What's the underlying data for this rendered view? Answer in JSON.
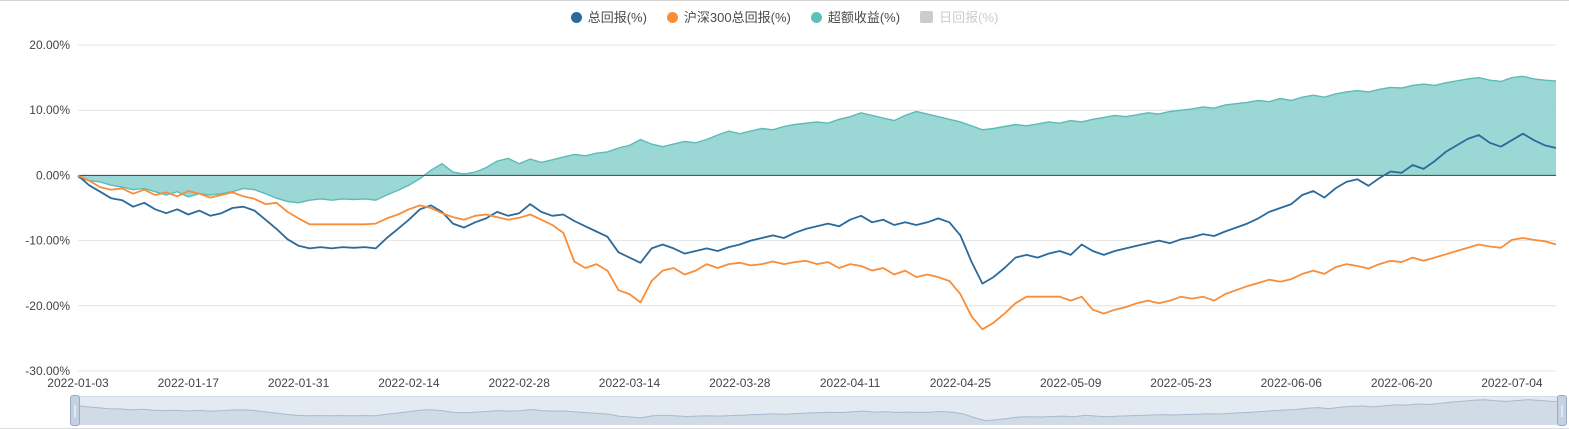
{
  "legend": {
    "items": [
      {
        "label": "总回报(%)",
        "color": "#2b6a9b",
        "marker": "circle",
        "active": true
      },
      {
        "label": "沪深300总回报(%)",
        "color": "#f98d38",
        "marker": "circle",
        "active": true
      },
      {
        "label": "超额收益(%)",
        "color": "#5fbfba",
        "marker": "circle",
        "active": true
      },
      {
        "label": "日回报(%)",
        "color": "#cccccc",
        "marker": "square",
        "active": false
      }
    ]
  },
  "chart_data": {
    "type": "line",
    "title": "",
    "xlabel": "",
    "ylabel": "",
    "grid": true,
    "legend_position": "top",
    "zero_line": true,
    "ylim": [
      -30,
      20
    ],
    "yticks": [
      "20.00%",
      "10.00%",
      "0.00%",
      "-10.00%",
      "-20.00%",
      "-30.00%"
    ],
    "xtick_every": 10,
    "xticks_shown": [
      "2022-01-03",
      "2022-01-17",
      "2022-01-31",
      "2022-02-14",
      "2022-02-28",
      "2022-03-14",
      "2022-03-28",
      "2022-04-11",
      "2022-04-25",
      "2022-05-09",
      "2022-05-23",
      "2022-06-06",
      "2022-06-20",
      "2022-07-04"
    ],
    "x": [
      "2022-01-03",
      "2022-01-04",
      "2022-01-05",
      "2022-01-06",
      "2022-01-07",
      "2022-01-10",
      "2022-01-11",
      "2022-01-12",
      "2022-01-13",
      "2022-01-14",
      "2022-01-17",
      "2022-01-18",
      "2022-01-19",
      "2022-01-20",
      "2022-01-21",
      "2022-01-24",
      "2022-01-25",
      "2022-01-26",
      "2022-01-27",
      "2022-01-28",
      "2022-01-31",
      "2022-02-01",
      "2022-02-02",
      "2022-02-03",
      "2022-02-04",
      "2022-02-07",
      "2022-02-08",
      "2022-02-09",
      "2022-02-10",
      "2022-02-11",
      "2022-02-14",
      "2022-02-15",
      "2022-02-16",
      "2022-02-17",
      "2022-02-18",
      "2022-02-21",
      "2022-02-22",
      "2022-02-23",
      "2022-02-24",
      "2022-02-25",
      "2022-02-28",
      "2022-03-01",
      "2022-03-02",
      "2022-03-03",
      "2022-03-04",
      "2022-03-07",
      "2022-03-08",
      "2022-03-09",
      "2022-03-10",
      "2022-03-11",
      "2022-03-14",
      "2022-03-15",
      "2022-03-16",
      "2022-03-17",
      "2022-03-18",
      "2022-03-21",
      "2022-03-22",
      "2022-03-23",
      "2022-03-24",
      "2022-03-25",
      "2022-03-28",
      "2022-03-29",
      "2022-03-30",
      "2022-03-31",
      "2022-04-01",
      "2022-04-04",
      "2022-04-05",
      "2022-04-06",
      "2022-04-07",
      "2022-04-08",
      "2022-04-11",
      "2022-04-12",
      "2022-04-13",
      "2022-04-14",
      "2022-04-15",
      "2022-04-18",
      "2022-04-19",
      "2022-04-20",
      "2022-04-21",
      "2022-04-22",
      "2022-04-25",
      "2022-04-26",
      "2022-04-27",
      "2022-04-28",
      "2022-04-29",
      "2022-05-02",
      "2022-05-03",
      "2022-05-04",
      "2022-05-05",
      "2022-05-06",
      "2022-05-09",
      "2022-05-10",
      "2022-05-11",
      "2022-05-12",
      "2022-05-13",
      "2022-05-16",
      "2022-05-17",
      "2022-05-18",
      "2022-05-19",
      "2022-05-20",
      "2022-05-23",
      "2022-05-24",
      "2022-05-25",
      "2022-05-26",
      "2022-05-27",
      "2022-05-30",
      "2022-05-31",
      "2022-06-01",
      "2022-06-02",
      "2022-06-03",
      "2022-06-06",
      "2022-06-07",
      "2022-06-08",
      "2022-06-09",
      "2022-06-10",
      "2022-06-13",
      "2022-06-14",
      "2022-06-15",
      "2022-06-16",
      "2022-06-17",
      "2022-06-20",
      "2022-06-21",
      "2022-06-22",
      "2022-06-23",
      "2022-06-24",
      "2022-06-27",
      "2022-06-28",
      "2022-06-29",
      "2022-06-30",
      "2022-07-01",
      "2022-07-04",
      "2022-07-05",
      "2022-07-06",
      "2022-07-07",
      "2022-07-08"
    ],
    "series": [
      {
        "name": "总回报(%)",
        "type": "line",
        "color": "#2b6a9b",
        "values": [
          0.0,
          -1.5,
          -2.5,
          -3.5,
          -3.8,
          -4.8,
          -4.2,
          -5.2,
          -5.8,
          -5.2,
          -6.0,
          -5.4,
          -6.2,
          -5.8,
          -5.0,
          -4.8,
          -5.4,
          -6.8,
          -8.2,
          -9.8,
          -10.8,
          -11.2,
          -11.0,
          -11.2,
          -11.0,
          -11.1,
          -11.0,
          -11.2,
          -9.6,
          -8.2,
          -6.8,
          -5.2,
          -4.6,
          -5.6,
          -7.4,
          -8.0,
          -7.2,
          -6.6,
          -5.6,
          -6.2,
          -5.8,
          -4.4,
          -5.6,
          -6.2,
          -6.0,
          -7.0,
          -7.8,
          -8.6,
          -9.4,
          -11.8,
          -12.6,
          -13.4,
          -11.2,
          -10.6,
          -11.2,
          -12.0,
          -11.6,
          -11.2,
          -11.6,
          -11.0,
          -10.6,
          -10.0,
          -9.6,
          -9.2,
          -9.6,
          -8.8,
          -8.2,
          -7.8,
          -7.4,
          -7.8,
          -6.8,
          -6.2,
          -7.2,
          -6.8,
          -7.6,
          -7.2,
          -7.6,
          -7.2,
          -6.6,
          -7.2,
          -9.2,
          -13.2,
          -16.6,
          -15.6,
          -14.2,
          -12.6,
          -12.2,
          -12.6,
          -12.0,
          -11.6,
          -12.2,
          -10.6,
          -11.6,
          -12.2,
          -11.6,
          -11.2,
          -10.8,
          -10.4,
          -10.0,
          -10.4,
          -9.8,
          -9.5,
          -9.0,
          -9.3,
          -8.6,
          -8.0,
          -7.4,
          -6.6,
          -5.6,
          -5.0,
          -4.4,
          -3.0,
          -2.4,
          -3.4,
          -2.0,
          -1.0,
          -0.6,
          -1.6,
          -0.4,
          0.6,
          0.4,
          1.6,
          1.0,
          2.2,
          3.6,
          4.6,
          5.6,
          6.2,
          5.0,
          4.4,
          5.4,
          6.4,
          5.4,
          4.6,
          4.2
        ]
      },
      {
        "name": "沪深300总回报(%)",
        "type": "line",
        "color": "#f98d38",
        "values": [
          0.0,
          -0.8,
          -1.8,
          -2.2,
          -2.0,
          -2.8,
          -2.2,
          -3.0,
          -2.6,
          -3.2,
          -2.4,
          -2.8,
          -3.4,
          -3.0,
          -2.6,
          -3.2,
          -3.6,
          -4.4,
          -4.2,
          -5.6,
          -6.6,
          -7.5,
          -7.5,
          -7.5,
          -7.5,
          -7.5,
          -7.5,
          -7.4,
          -6.6,
          -6.0,
          -5.2,
          -4.6,
          -5.0,
          -5.8,
          -6.4,
          -6.8,
          -6.2,
          -6.0,
          -6.4,
          -6.8,
          -6.5,
          -6.0,
          -6.8,
          -7.6,
          -8.8,
          -13.2,
          -14.2,
          -13.6,
          -14.6,
          -17.6,
          -18.2,
          -19.5,
          -16.2,
          -14.6,
          -14.2,
          -15.2,
          -14.6,
          -13.6,
          -14.2,
          -13.6,
          -13.4,
          -13.8,
          -13.6,
          -13.2,
          -13.6,
          -13.3,
          -13.1,
          -13.6,
          -13.3,
          -14.2,
          -13.6,
          -13.9,
          -14.6,
          -14.2,
          -15.2,
          -14.6,
          -15.6,
          -15.2,
          -15.6,
          -16.2,
          -18.2,
          -21.6,
          -23.6,
          -22.6,
          -21.2,
          -19.6,
          -18.6,
          -18.6,
          -18.6,
          -18.6,
          -19.2,
          -18.6,
          -20.6,
          -21.2,
          -20.6,
          -20.2,
          -19.6,
          -19.2,
          -19.6,
          -19.2,
          -18.6,
          -18.9,
          -18.6,
          -19.2,
          -18.2,
          -17.6,
          -17.0,
          -16.5,
          -16.0,
          -16.3,
          -15.9,
          -15.1,
          -14.6,
          -15.1,
          -14.1,
          -13.6,
          -13.9,
          -14.3,
          -13.6,
          -13.1,
          -13.3,
          -12.6,
          -13.1,
          -12.6,
          -12.1,
          -11.6,
          -11.1,
          -10.6,
          -10.9,
          -11.1,
          -9.9,
          -9.6,
          -9.9,
          -10.1,
          -10.6
        ]
      },
      {
        "name": "超额收益(%)",
        "type": "area",
        "color": "#5bbcb7",
        "fill": "#8ad0cc",
        "fill_opacity": 0.85,
        "values": [
          -0.3,
          -0.8,
          -1.0,
          -1.5,
          -1.8,
          -2.2,
          -2.0,
          -2.5,
          -3.0,
          -2.5,
          -3.3,
          -2.8,
          -3.0,
          -2.8,
          -2.5,
          -2.0,
          -2.2,
          -2.8,
          -3.5,
          -4.0,
          -4.2,
          -3.8,
          -3.6,
          -3.8,
          -3.6,
          -3.7,
          -3.6,
          -3.8,
          -3.0,
          -2.3,
          -1.5,
          -0.5,
          0.8,
          1.8,
          0.5,
          0.2,
          0.5,
          1.2,
          2.2,
          2.6,
          1.8,
          2.5,
          2.0,
          2.4,
          2.8,
          3.2,
          3.0,
          3.4,
          3.6,
          4.2,
          4.6,
          5.5,
          4.8,
          4.4,
          4.8,
          5.2,
          5.0,
          5.5,
          6.2,
          6.8,
          6.4,
          6.8,
          7.2,
          7.0,
          7.5,
          7.8,
          8.0,
          8.2,
          8.0,
          8.6,
          9.0,
          9.6,
          9.2,
          8.8,
          8.4,
          9.2,
          9.8,
          9.4,
          9.0,
          8.6,
          8.2,
          7.6,
          7.0,
          7.2,
          7.5,
          7.8,
          7.6,
          7.9,
          8.2,
          8.0,
          8.4,
          8.2,
          8.6,
          8.9,
          9.2,
          9.0,
          9.3,
          9.6,
          9.4,
          9.8,
          10.0,
          10.2,
          10.5,
          10.3,
          10.8,
          11.0,
          11.2,
          11.5,
          11.3,
          11.8,
          11.5,
          12.0,
          12.3,
          12.0,
          12.5,
          12.8,
          13.0,
          12.8,
          13.2,
          13.5,
          13.4,
          13.8,
          14.0,
          13.8,
          14.2,
          14.5,
          14.8,
          15.0,
          14.6,
          14.4,
          15.0,
          15.2,
          14.8,
          14.6,
          14.5
        ]
      },
      {
        "name": "日回报(%)",
        "type": "bar",
        "color": "#cccccc",
        "visible": false,
        "values": []
      }
    ]
  },
  "datazoom": {
    "track_color": "#e3eaf2",
    "shadow_color": "#a8bace",
    "handle_color": "#c4d1e0"
  }
}
